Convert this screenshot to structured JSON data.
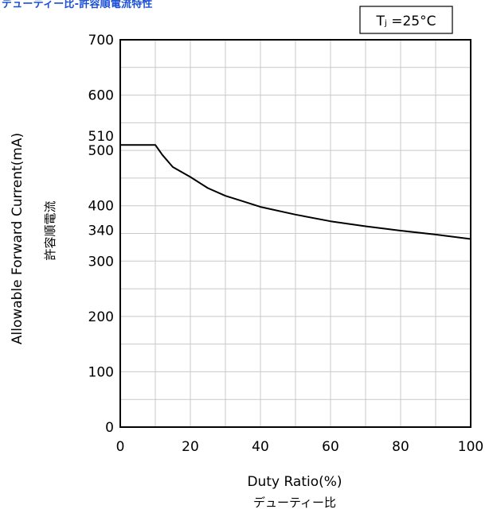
{
  "title": "デューティー比-許容順電流特性",
  "chart_data": {
    "type": "line",
    "condition_box": "Tⱼ =25°C",
    "xlabel": "Duty Ratio(%)",
    "xlabel_jp": "デューティー比",
    "ylabel": "Allowable Forward Current(mA)",
    "ylabel_jp": "許容順電流",
    "xlim": [
      0,
      100
    ],
    "ylim": [
      0,
      700
    ],
    "x_ticks": [
      "0",
      "20",
      "40",
      "60",
      "80",
      "100"
    ],
    "y_ticks": [
      "0",
      "100",
      "200",
      "300",
      "400",
      "500",
      "600",
      "700"
    ],
    "y_annotations": [
      "510",
      "340"
    ],
    "grid": true,
    "colors": {
      "title": "#1a4fd6",
      "line": "#000000",
      "grid": "#c8c8c8"
    },
    "series": [
      {
        "x": [
          0,
          10,
          12,
          15,
          20,
          25,
          30,
          35,
          40,
          50,
          60,
          70,
          80,
          90,
          100
        ],
        "y": [
          510,
          510,
          492,
          470,
          452,
          432,
          418,
          408,
          398,
          384,
          372,
          363,
          355,
          348,
          340
        ]
      }
    ]
  }
}
